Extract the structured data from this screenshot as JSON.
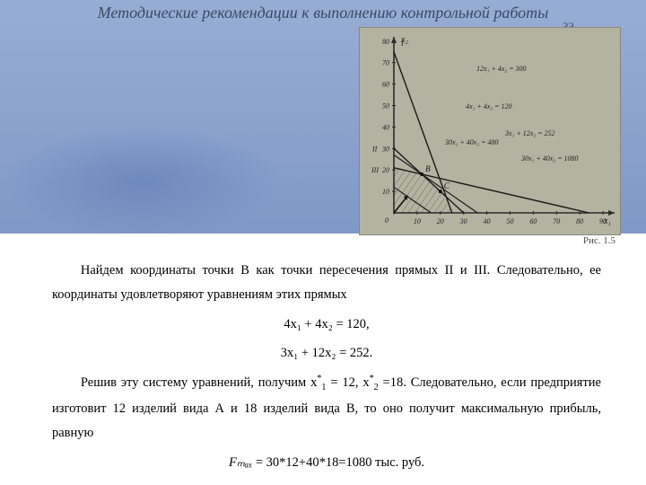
{
  "title": "Методические рекомендации к выполнению контрольной работы",
  "page_number": "33",
  "figure": {
    "caption": "Рис. 1.5",
    "background": "#b4b2a1",
    "axis_color": "#2a2a2a",
    "x_label": "x₁",
    "y_label": "x₂",
    "x_ticks": [
      0,
      10,
      20,
      30,
      40,
      50,
      60,
      70,
      80,
      90
    ],
    "y_ticks": [
      10,
      20,
      30,
      40,
      50,
      60,
      70,
      80
    ],
    "extra_y_labels": {
      "II": "30",
      "III": "20"
    },
    "roman_I": "I",
    "lines": [
      {
        "label": "12x₁ + 4x₂ = 300",
        "x1": 0,
        "y1": 75,
        "x2": 25,
        "y2": 0,
        "color": "#1a1a1a",
        "w": 1.4
      },
      {
        "label": "4x₁ + 4x₂ = 120",
        "x1": 0,
        "y1": 30,
        "x2": 30,
        "y2": 0,
        "color": "#1a1a1a",
        "w": 1.4
      },
      {
        "label": "30x₁ + 40x₂ = 480",
        "x1": 0,
        "y1": 12,
        "x2": 16,
        "y2": 0,
        "color": "#1a1a1a",
        "w": 1.2
      },
      {
        "label": "3x₁ + 12x₂ = 252",
        "x1": 0,
        "y1": 21,
        "x2": 84,
        "y2": 0,
        "color": "#1a1a1a",
        "w": 1.4
      },
      {
        "label": "30x₁ + 40x₂ = 1080",
        "x1": 0,
        "y1": 27,
        "x2": 36,
        "y2": 0,
        "color": "#1a1a1a",
        "w": 1.2
      }
    ],
    "feasible_poly": [
      [
        0,
        0
      ],
      [
        0,
        21
      ],
      [
        12,
        18
      ],
      [
        20,
        10
      ],
      [
        25,
        0
      ]
    ],
    "points": {
      "B": [
        12,
        18
      ],
      "C": [
        20,
        10
      ]
    },
    "hatch_color": "#2a2a2a",
    "xlim": [
      0,
      95
    ],
    "ylim": [
      0,
      82
    ]
  },
  "body": {
    "p1": "Найдем координаты точки B как точки пересечения прямых II и III. Следовательно, ее координаты удовлетворяют уравнениям этих прямых",
    "eq1": "4x₁ + 4x₂ = 120,",
    "eq2": "3x₁ + 12x₂ = 252.",
    "p2_a": "Решив эту систему уравнений, получим x",
    "p2_b": " = 12, x",
    "p2_c": " =18. Следовательно, если предприятие изготовит 12 изделий вида А и 18 изделий вида В, то оно получит максимальную прибыль, равную",
    "eq3_lhs": "Fₘₐₓ",
    "eq3_rhs": " = 30*12+40*18=1080  тыс. руб."
  }
}
